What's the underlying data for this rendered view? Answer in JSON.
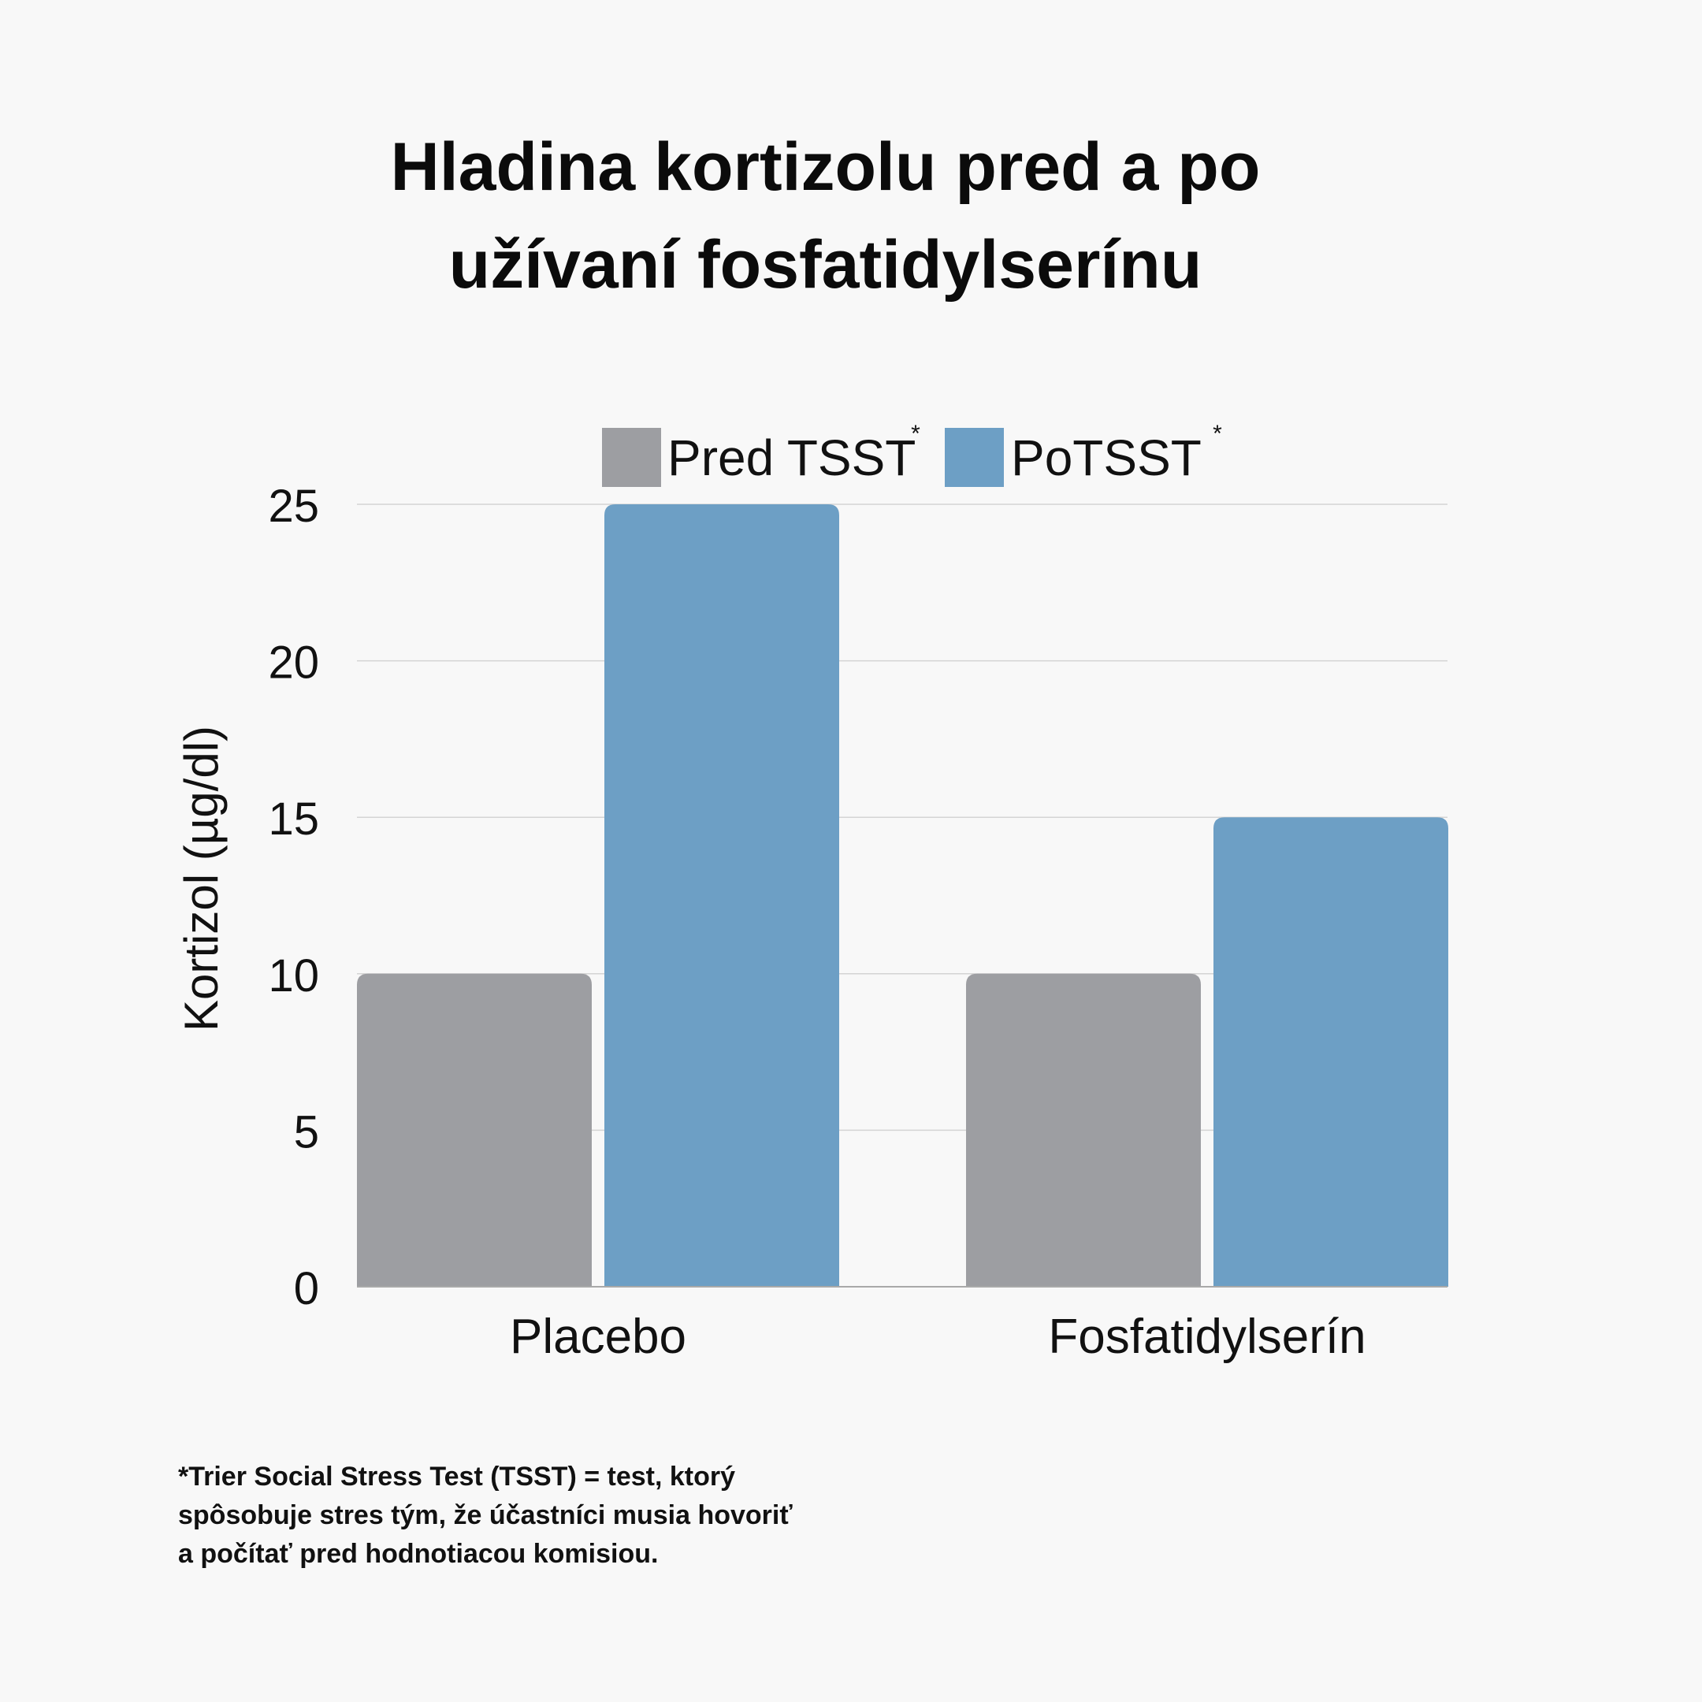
{
  "title_lines": [
    "Hladina kortizolu pred a po",
    "užívaní fosfatidylserínu"
  ],
  "chart_data": {
    "type": "bar",
    "title": "Hladina kortizolu pred a po užívaní fosfatidylserínu",
    "categories": [
      "Placebo",
      "Fosfatidylserín"
    ],
    "series": [
      {
        "name": "Pred TSST",
        "marker": "*",
        "color": "#9d9ea2",
        "values": [
          10,
          10
        ]
      },
      {
        "name": "PoTSST",
        "marker": "*",
        "color": "#6d9fc5",
        "values": [
          25,
          15
        ]
      }
    ],
    "xlabel": "",
    "ylabel": "Kortizol (µg/dl)",
    "ylim": [
      0,
      25
    ],
    "yticks": [
      0,
      5,
      10,
      15,
      20,
      25
    ],
    "grid": true,
    "legend_position": "top"
  },
  "footnote_lines": [
    "*Trier Social Stress Test (TSST) = test, ktorý",
    "spôsobuje stres tým, že účastníci musia hovoriť",
    "a počítať pred hodnotiacou komisiou."
  ]
}
